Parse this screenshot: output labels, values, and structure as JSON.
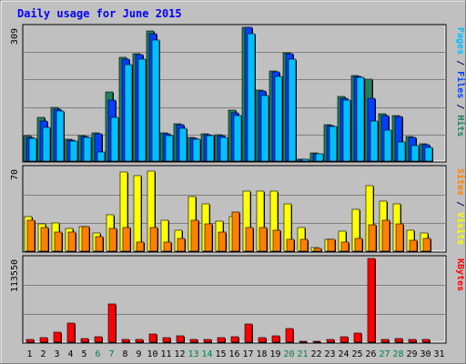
{
  "chart_data": {
    "type": "bar",
    "title": "Daily usage for June 2015",
    "categories": [
      "1",
      "2",
      "3",
      "4",
      "5",
      "6",
      "7",
      "8",
      "9",
      "10",
      "11",
      "12",
      "13",
      "14",
      "15",
      "16",
      "17",
      "18",
      "19",
      "20",
      "21",
      "22",
      "23",
      "24",
      "25",
      "26",
      "27",
      "28",
      "29",
      "30",
      "31"
    ],
    "weekend_days": [
      "6",
      "7",
      "13",
      "14",
      "20",
      "21",
      "27",
      "28"
    ],
    "panels": [
      {
        "name": "hits-files-pages",
        "scale_label": "309",
        "ymax": 309,
        "right_label": [
          {
            "text": "Pages",
            "color": "#00c0ff"
          },
          {
            "text": " / ",
            "color": "#000080"
          },
          {
            "text": "Files",
            "color": "#0040ff"
          },
          {
            "text": " / ",
            "color": "#000080"
          },
          {
            "text": "Hits",
            "color": "#208060"
          }
        ],
        "series": [
          {
            "name": "Hits",
            "color": "#208060",
            "values": [
              58,
              100,
              125,
              50,
              59,
              66,
              160,
              240,
              249,
              300,
              66,
              86,
              55,
              64,
              60,
              118,
              309,
              165,
              208,
              250,
              5,
              18,
              85,
              149,
              198,
              190,
              110,
              106,
              57,
              40,
              0
            ]
          },
          {
            "name": "Files",
            "color": "#0040ff",
            "values": [
              55,
              92,
              120,
              48,
              57,
              63,
              140,
              235,
              245,
              295,
              63,
              84,
              53,
              60,
              59,
              112,
              309,
              162,
              205,
              248,
              4,
              17,
              83,
              145,
              196,
              145,
              105,
              102,
              55,
              38,
              0
            ]
          },
          {
            "name": "Pages",
            "color": "#00c0ff",
            "values": [
              52,
              78,
              115,
              46,
              55,
              20,
              100,
              223,
              236,
              280,
              58,
              76,
              51,
              58,
              55,
              105,
              295,
              152,
              195,
              235,
              4,
              16,
              80,
              140,
              194,
              92,
              72,
              45,
              35,
              31,
              0
            ]
          }
        ]
      },
      {
        "name": "visits-sites",
        "scale_label": "70",
        "ymax": 70,
        "right_label": [
          {
            "text": "Sites",
            "color": "#ff8000"
          },
          {
            "text": " / ",
            "color": "#000080"
          },
          {
            "text": "Visits",
            "color": "#ffff00"
          }
        ],
        "series": [
          {
            "name": "Visits",
            "color": "#ffff00",
            "values": [
              29,
              23,
              24,
              19,
              21,
              15,
              31,
              67,
              64,
              68,
              26,
              18,
              46,
              40,
              25,
              29,
              51,
              51,
              51,
              40,
              20,
              3,
              10,
              17,
              35,
              55,
              42,
              40,
              18,
              15,
              0
            ]
          },
          {
            "name": "Sites",
            "color": "#ff8000",
            "values": [
              26,
              20,
              16,
              16,
              21,
              12,
              19,
              20,
              8,
              20,
              8,
              11,
              26,
              23,
              16,
              33,
              20,
              20,
              18,
              10,
              10,
              2,
              10,
              8,
              11,
              22,
              26,
              23,
              9,
              11,
              0
            ]
          }
        ]
      },
      {
        "name": "kbytes",
        "scale_label": "113550",
        "ymax": 113550,
        "right_label": [
          {
            "text": "KBytes",
            "color": "#ff0000"
          }
        ],
        "series": [
          {
            "name": "KBytes",
            "color": "#ff0000",
            "values": [
              3500,
              6000,
              13200,
              26000,
              4800,
              7000,
              51500,
              4000,
              4200,
              10500,
              5800,
              9000,
              3500,
              3800,
              5800,
              7400,
              25000,
              5800,
              8800,
              18000,
              1200,
              1300,
              3500,
              7400,
              12500,
              113550,
              4000,
              4500,
              3800,
              3500,
              0
            ]
          }
        ]
      }
    ]
  }
}
